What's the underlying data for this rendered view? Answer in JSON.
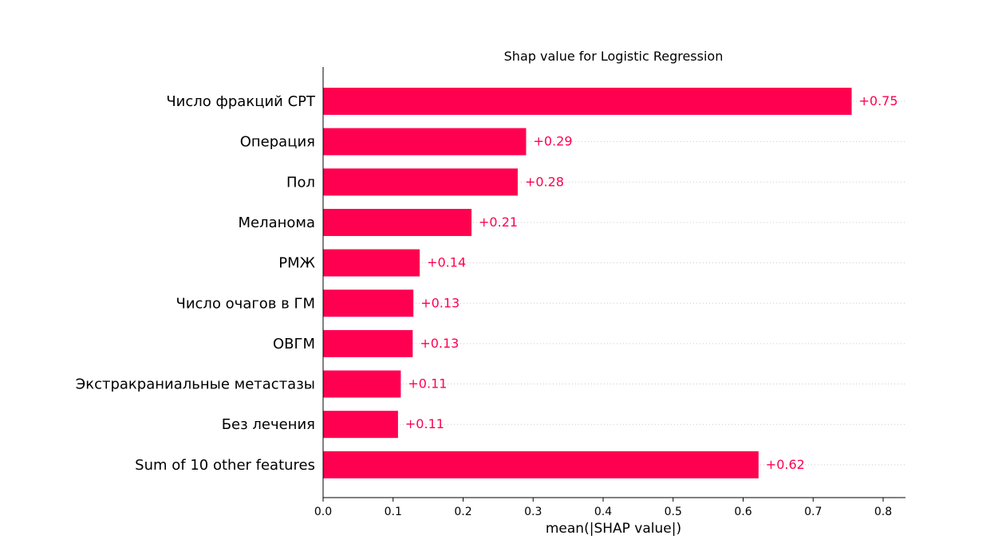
{
  "chart_data": {
    "type": "bar",
    "orientation": "horizontal",
    "title": "Shap value for Logistic Regression",
    "xlabel": "mean(|SHAP value|)",
    "ylabel": "",
    "categories": [
      "Число фракций СРТ",
      "Операция",
      "Пол",
      "Меланома",
      "РМЖ",
      "Число очагов в ГМ",
      "ОВГМ",
      "Экстракраниальные метастазы",
      "Без лечения",
      "Sum of 10 other features"
    ],
    "values": [
      0.755,
      0.29,
      0.278,
      0.212,
      0.138,
      0.129,
      0.128,
      0.111,
      0.107,
      0.622
    ],
    "value_labels": [
      "+0.75",
      "+0.29",
      "+0.28",
      "+0.21",
      "+0.14",
      "+0.13",
      "+0.13",
      "+0.11",
      "+0.11",
      "+0.62"
    ],
    "xlim": [
      0,
      0.83
    ],
    "xticks": [
      0.0,
      0.1,
      0.2,
      0.3,
      0.4,
      0.5,
      0.6,
      0.7,
      0.8
    ],
    "xtick_labels": [
      "0.0",
      "0.1",
      "0.2",
      "0.3",
      "0.4",
      "0.5",
      "0.6",
      "0.7",
      "0.8"
    ],
    "bar_color": "#ff0051",
    "grid": "horizontal dotted"
  }
}
